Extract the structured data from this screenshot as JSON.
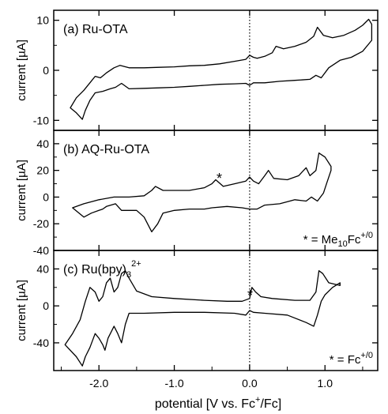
{
  "chart_data": [
    {
      "type": "line",
      "panel_label": "(a) Ru-OTA",
      "ylabel": "current [µA]",
      "ylim": [
        -12,
        12
      ],
      "yticks": [
        -10,
        0,
        10
      ],
      "xlim": [
        -2.6,
        1.7
      ],
      "annotation": "",
      "series": [
        {
          "x": [
            -2.38,
            -2.3,
            -2.2,
            -2.12,
            -2.05,
            -1.98,
            -1.9,
            -1.8,
            -1.72,
            -1.6,
            -1.4,
            -1.2,
            -1.0,
            -0.8,
            -0.6,
            -0.4,
            -0.2,
            -0.05,
            0.0,
            0.05,
            0.1,
            0.2,
            0.3,
            0.35,
            0.45,
            0.6,
            0.75,
            0.85,
            0.9,
            0.98,
            1.1,
            1.25,
            1.4,
            1.5,
            1.58,
            1.62,
            1.62,
            1.5,
            1.35,
            1.2,
            1.05,
            0.95,
            0.88,
            0.8,
            0.6,
            0.4,
            0.2,
            0.05,
            0.0,
            -0.05,
            -0.2,
            -0.4,
            -0.6,
            -0.8,
            -1.0,
            -1.2,
            -1.4,
            -1.6,
            -1.7,
            -1.78,
            -1.85,
            -1.95,
            -2.05,
            -2.12,
            -2.18,
            -2.22,
            -2.3,
            -2.38
          ],
          "y": [
            -7.5,
            -5.5,
            -4.0,
            -2.5,
            -1.2,
            -1.5,
            -0.5,
            0.5,
            1.0,
            0.5,
            0.5,
            0.6,
            0.7,
            0.9,
            1.0,
            1.3,
            1.8,
            2.2,
            3.0,
            2.6,
            2.4,
            2.8,
            3.5,
            4.8,
            4.3,
            4.8,
            5.6,
            6.8,
            8.6,
            7.0,
            6.5,
            7.0,
            8.0,
            9.0,
            10.2,
            9.2,
            6.0,
            3.8,
            2.6,
            2.0,
            0.5,
            -1.5,
            -1.0,
            -1.8,
            -2.0,
            -2.2,
            -2.5,
            -2.5,
            -3.0,
            -2.6,
            -2.7,
            -2.8,
            -3.0,
            -3.2,
            -3.4,
            -3.5,
            -3.6,
            -3.7,
            -2.6,
            -3.4,
            -3.7,
            -4.2,
            -4.5,
            -6.0,
            -8.0,
            -9.8,
            -8.5,
            -7.5
          ]
        }
      ]
    },
    {
      "type": "line",
      "panel_label": "(b) AQ-Ru-OTA",
      "ylabel": "current [µA]",
      "ylim": [
        -40,
        50
      ],
      "yticks": [
        -40,
        -20,
        0,
        20,
        40
      ],
      "xlim": [
        -2.6,
        1.7
      ],
      "annotation": "* = Me10Fc+/0",
      "annotation_parts": {
        "pre": "* = Me",
        "sub": "10",
        "mid": "Fc",
        "sup": "+/0"
      },
      "marker": "*",
      "series": [
        {
          "x": [
            -2.35,
            -2.2,
            -2.0,
            -1.8,
            -1.6,
            -1.4,
            -1.3,
            -1.25,
            -1.15,
            -1.0,
            -0.8,
            -0.6,
            -0.5,
            -0.45,
            -0.35,
            -0.2,
            -0.05,
            0.0,
            0.05,
            0.12,
            0.2,
            0.25,
            0.32,
            0.5,
            0.65,
            0.75,
            0.8,
            0.88,
            0.92,
            1.0,
            1.08,
            1.08,
            1.02,
            0.98,
            0.9,
            0.82,
            0.75,
            0.6,
            0.4,
            0.2,
            0.1,
            0.0,
            -0.1,
            -0.3,
            -0.5,
            -0.6,
            -0.8,
            -1.0,
            -1.15,
            -1.22,
            -1.3,
            -1.4,
            -1.5,
            -1.6,
            -1.7,
            -1.78,
            -1.9,
            -1.95,
            -2.0,
            -2.1,
            -2.2,
            -2.35
          ],
          "y": [
            -8,
            -5,
            -2,
            0,
            0,
            1,
            5,
            8,
            5,
            5,
            5,
            7,
            10,
            13,
            8,
            10,
            12,
            15,
            12,
            10,
            16,
            20,
            14,
            13,
            16,
            22,
            16,
            20,
            33,
            30,
            23,
            20,
            10,
            3,
            -3,
            0,
            -3,
            -2,
            -5,
            -6,
            -9,
            -9,
            -8,
            -7,
            -8,
            -9,
            -9,
            -10,
            -12,
            -20,
            -26,
            -15,
            -10,
            -10,
            -10,
            -5,
            -7,
            -9,
            -10,
            -12,
            -15,
            -8
          ]
        }
      ]
    },
    {
      "type": "line",
      "panel_label": "(c) Ru(bpy)3 2+",
      "panel_label_parts": {
        "pre": "(c) Ru(bpy)",
        "sub": "3",
        "sup": "2+"
      },
      "ylabel": "current [µA]",
      "ylim": [
        -70,
        60
      ],
      "yticks": [
        -40,
        0,
        40
      ],
      "xlim": [
        -2.6,
        1.7
      ],
      "annotation": "* = Fc+/0",
      "annotation_parts": {
        "pre": "* = Fc",
        "sup": "+/0"
      },
      "marker": "*",
      "series": [
        {
          "x": [
            -2.45,
            -2.35,
            -2.25,
            -2.18,
            -2.12,
            -2.05,
            -2.0,
            -1.95,
            -1.9,
            -1.85,
            -1.8,
            -1.75,
            -1.7,
            -1.65,
            -1.6,
            -1.5,
            -1.3,
            -1.0,
            -0.6,
            -0.3,
            -0.1,
            0.0,
            0.03,
            0.08,
            0.15,
            0.3,
            0.6,
            0.8,
            0.88,
            0.92,
            0.97,
            1.05,
            1.2,
            1.2,
            1.1,
            1.0,
            0.95,
            0.9,
            0.85,
            0.75,
            0.5,
            0.2,
            0.05,
            0.0,
            -0.05,
            -0.2,
            -0.6,
            -1.0,
            -1.4,
            -1.6,
            -1.65,
            -1.7,
            -1.75,
            -1.8,
            -1.88,
            -1.92,
            -1.95,
            -2.0,
            -2.05,
            -2.12,
            -2.18,
            -2.22,
            -2.3,
            -2.45
          ],
          "y": [
            -42,
            -30,
            -15,
            5,
            20,
            15,
            5,
            10,
            25,
            30,
            15,
            20,
            35,
            38,
            30,
            16,
            10,
            8,
            6,
            5,
            5,
            8,
            20,
            15,
            10,
            8,
            6,
            6,
            15,
            38,
            35,
            25,
            22,
            25,
            20,
            12,
            5,
            -10,
            -22,
            -18,
            -10,
            -8,
            -7,
            -5,
            -10,
            -8,
            -7,
            -7,
            -8,
            -8,
            -20,
            -40,
            -30,
            -22,
            -35,
            -48,
            -42,
            -35,
            -30,
            -45,
            -55,
            -65,
            -55,
            -42
          ]
        }
      ]
    }
  ],
  "xaxis": {
    "xlim": [
      -2.6,
      1.7
    ],
    "tick_values": [
      -2.0,
      -1.0,
      0.0,
      1.0
    ],
    "tick_labels": [
      "-2.0",
      "-1.0",
      "0.0",
      "1.0"
    ],
    "xlabel": "potential [V vs. Fc+/Fc]",
    "xlabel_parts": {
      "pre": "potential [V vs. Fc",
      "sup": "+",
      "post": "/Fc]"
    },
    "reference_line_x": 0.0
  }
}
